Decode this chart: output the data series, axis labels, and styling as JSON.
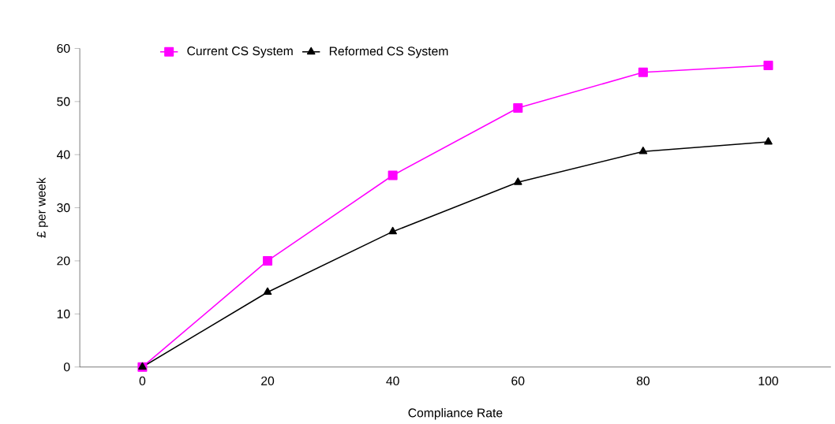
{
  "chart_data": {
    "type": "line",
    "xlabel": "Compliance Rate",
    "ylabel": "£ per week",
    "categories": [
      "0",
      "20",
      "40",
      "60",
      "80",
      "100"
    ],
    "series": [
      {
        "name": "Current CS System",
        "color": "#ff00ff",
        "marker": "square",
        "values": [
          0,
          20,
          36.1,
          48.8,
          55.5,
          56.8
        ]
      },
      {
        "name": "Reformed CS System",
        "color": "#000000",
        "marker": "triangle",
        "values": [
          0,
          14.1,
          25.5,
          34.8,
          40.6,
          42.4
        ]
      }
    ],
    "ylim": [
      0,
      60
    ],
    "yticks": [
      0,
      10,
      20,
      30,
      40,
      50,
      60
    ],
    "grid": false,
    "legend": "top",
    "line_style": "solid"
  }
}
